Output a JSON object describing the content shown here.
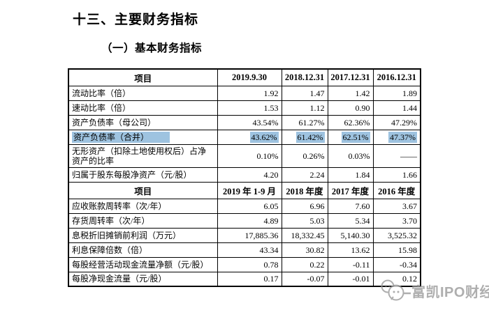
{
  "page": {
    "title": "十三、主要财务指标",
    "subtitle": "（一）基本财务指标"
  },
  "table": {
    "sections": [
      {
        "headers": [
          "项目",
          "2019.9.30",
          "2018.12.31",
          "2017.12.31",
          "2016.12.31"
        ],
        "rows": [
          {
            "label": "流动比率（倍）",
            "values": [
              "1.92",
              "1.47",
              "1.42",
              "1.89"
            ],
            "highlight": false
          },
          {
            "label": "速动比率（倍）",
            "values": [
              "1.53",
              "1.12",
              "0.90",
              "1.44"
            ],
            "highlight": false
          },
          {
            "label": "资产负债率（母公司）",
            "values": [
              "43.54%",
              "61.27%",
              "62.36%",
              "47.29%"
            ],
            "highlight": false
          },
          {
            "label": "资产负债率（合并）",
            "values": [
              "43.62%",
              "61.42%",
              "62.51%",
              "47.37%"
            ],
            "highlight": true
          },
          {
            "label": "无形资产（扣除土地使用权后）占净资产的比率",
            "values": [
              "0.10%",
              "0.26%",
              "0.03%",
              "——"
            ],
            "highlight": false
          },
          {
            "label": "归属于股东每股净资产（元/股）",
            "values": [
              "4.20",
              "2.24",
              "1.84",
              "1.66"
            ],
            "highlight": false
          }
        ]
      },
      {
        "headers": [
          "项目",
          "2019 年 1-9 月",
          "2018 年度",
          "2017 年度",
          "2016 年度"
        ],
        "rows": [
          {
            "label": "应收账款周转率（次/年）",
            "values": [
              "6.05",
              "6.96",
              "7.60",
              "3.67"
            ],
            "highlight": false
          },
          {
            "label": "存货周转率（次/年）",
            "values": [
              "4.89",
              "5.03",
              "5.34",
              "3.70"
            ],
            "highlight": false
          },
          {
            "label": "息税折旧摊销前利润（万元）",
            "values": [
              "17,885.36",
              "18,332.45",
              "5,140.30",
              "3,525.32"
            ],
            "highlight": false
          },
          {
            "label": "利息保障倍数（倍）",
            "values": [
              "43.34",
              "30.82",
              "13.62",
              "15.98"
            ],
            "highlight": false
          },
          {
            "label": "每股经营活动现金流量净额（元/股）",
            "values": [
              "0.78",
              "0.22",
              "-0.11",
              "-0.34"
            ],
            "highlight": false
          },
          {
            "label": "每股净现金流量（元/股）",
            "values": [
              "0.17",
              "-0.07",
              "-0.01",
              "0.12"
            ],
            "highlight": false
          }
        ]
      }
    ]
  },
  "watermark": {
    "text": "富凯IPO财经",
    "icon": "wechat-bubbles-icon"
  },
  "colors": {
    "highlight": "#9ec3e0",
    "watermark": "#9b9b9b",
    "border": "#000000",
    "text": "#000000",
    "background": "#ffffff"
  }
}
